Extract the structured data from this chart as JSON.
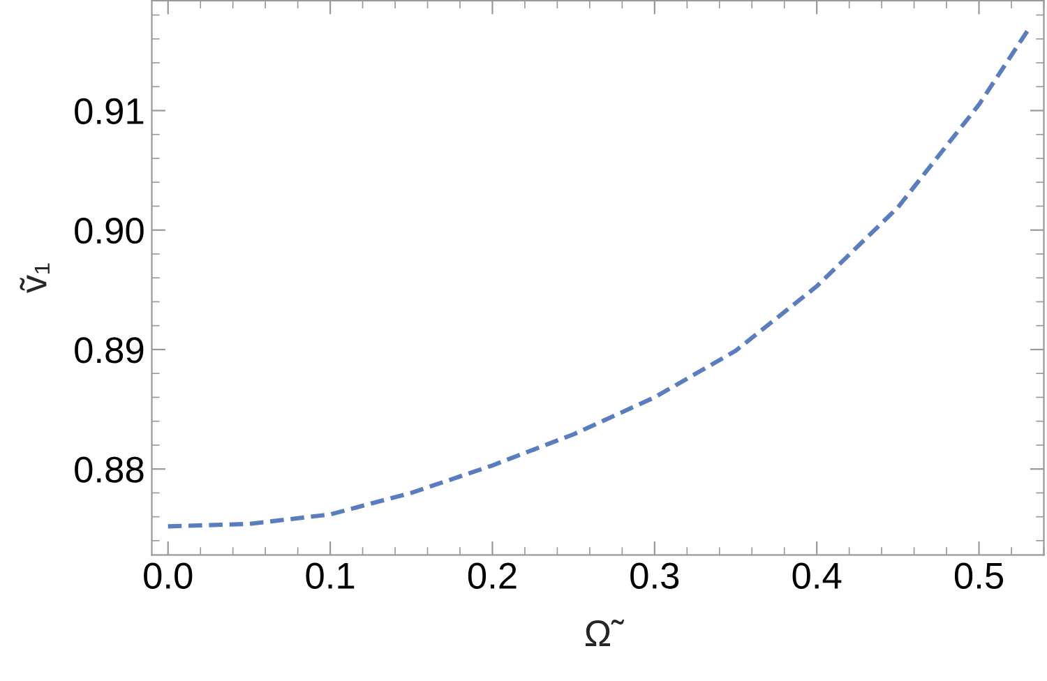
{
  "chart_data": {
    "type": "line",
    "xlabel": "Ω̃",
    "ylabel": "ṽ₁",
    "x": [
      0,
      0.05,
      0.1,
      0.15,
      0.2,
      0.25,
      0.3,
      0.35,
      0.4,
      0.45,
      0.5,
      0.53
    ],
    "series": [
      {
        "color": "#5a7dbf",
        "values": [
          0.8752,
          0.8754,
          0.8762,
          0.878,
          0.8803,
          0.8829,
          0.886,
          0.8899,
          0.8953,
          0.9019,
          0.9105,
          0.9167
        ]
      }
    ],
    "xlim": [
      -0.01,
      0.54
    ],
    "ylim": [
      0.8728,
      0.9192
    ],
    "xticks": [
      {
        "value": 0,
        "label": "0.0"
      },
      0.1,
      0.2,
      0.3,
      0.4,
      0.5
    ],
    "yticks": [
      0.88,
      {
        "value": 0.89,
        "label": "0.89"
      },
      {
        "value": 0.9,
        "label": "0.90"
      },
      0.91
    ],
    "line_style": "dashed",
    "marker": "none",
    "grid": false,
    "legend": false
  }
}
